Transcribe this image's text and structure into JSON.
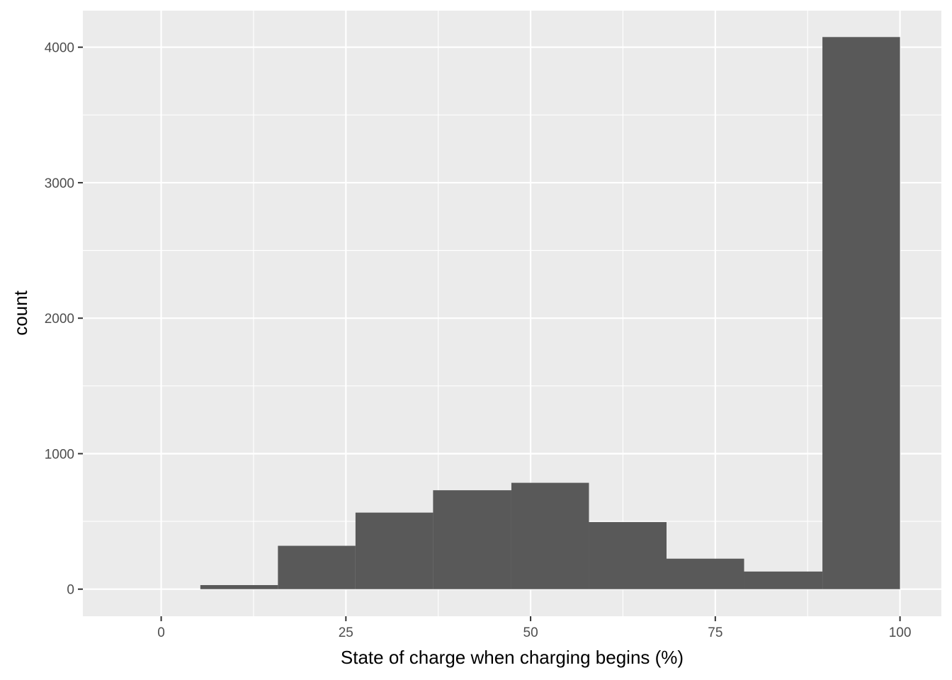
{
  "chart_data": {
    "type": "bar",
    "subtype": "histogram",
    "xlabel": "State of charge when charging begins (%)",
    "ylabel": "count",
    "xlim": [
      -10.6,
      105.6
    ],
    "ylim": [
      -200,
      4270
    ],
    "x_ticks": [
      0,
      25,
      50,
      75,
      100
    ],
    "x_tick_labels": [
      "0",
      "25",
      "50",
      "75",
      "100"
    ],
    "y_ticks": [
      0,
      1000,
      2000,
      3000,
      4000
    ],
    "y_tick_labels": [
      "0",
      "1000",
      "2000",
      "3000",
      "4000"
    ],
    "bins": [
      {
        "x0": 5.3,
        "x1": 15.8,
        "count": 30
      },
      {
        "x0": 15.8,
        "x1": 26.3,
        "count": 320
      },
      {
        "x0": 26.3,
        "x1": 36.8,
        "count": 565
      },
      {
        "x0": 36.8,
        "x1": 47.4,
        "count": 730
      },
      {
        "x0": 47.4,
        "x1": 57.9,
        "count": 785
      },
      {
        "x0": 57.9,
        "x1": 68.4,
        "count": 495
      },
      {
        "x0": 68.4,
        "x1": 78.9,
        "count": 225
      },
      {
        "x0": 78.9,
        "x1": 89.5,
        "count": 130
      },
      {
        "x0": 89.5,
        "x1": 100.0,
        "count": 4075
      }
    ],
    "grid": true,
    "colors": {
      "panel_background": "#ebebeb",
      "grid": "#ffffff",
      "bar_fill": "#595959",
      "tick_text": "#4d4d4d",
      "tick_mark": "#333333"
    }
  }
}
